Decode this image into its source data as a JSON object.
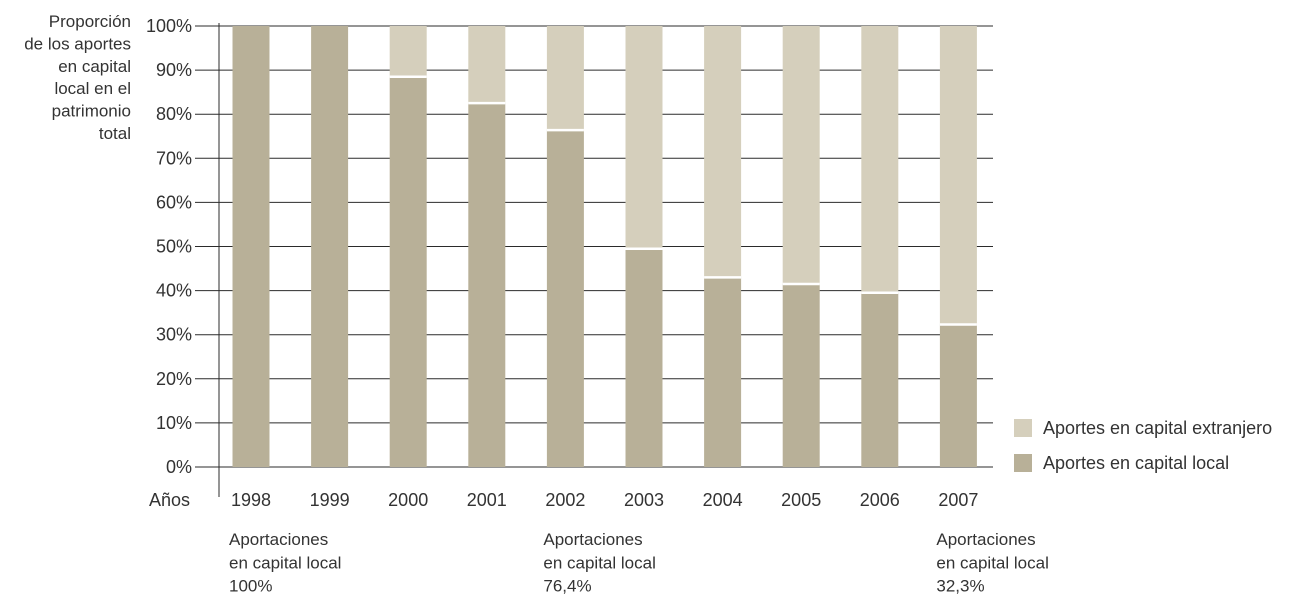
{
  "chart_data": {
    "type": "bar",
    "stacked": true,
    "percent": true,
    "ylabel": [
      "Proporción",
      "de los aportes",
      "en capital",
      "local en el",
      "patrimonio",
      "total"
    ],
    "xlabel": "Años",
    "ylim": [
      0,
      100
    ],
    "yticks": [
      "0%",
      "10%",
      "20%",
      "30%",
      "40%",
      "50%",
      "60%",
      "70%",
      "80%",
      "90%",
      "100%"
    ],
    "categories": [
      "1998",
      "1999",
      "2000",
      "2001",
      "2002",
      "2003",
      "2004",
      "2005",
      "2006",
      "2007"
    ],
    "series": [
      {
        "name": "Aportes en capital local",
        "color": "#b8b098",
        "values": [
          100,
          100,
          88.5,
          82.5,
          76.4,
          49.5,
          43,
          41.5,
          39.5,
          32.3
        ]
      },
      {
        "name": "Aportes en capital extranjero",
        "color": "#d5cfbc",
        "values": [
          0,
          0,
          11.5,
          17.5,
          23.6,
          50.5,
          57,
          58.5,
          60.5,
          67.7
        ]
      }
    ],
    "legend": {
      "position": "right",
      "items": [
        "Aportes en capital extranjero",
        "Aportes en capital local"
      ]
    },
    "grid": true,
    "annotations": [
      {
        "category": "1998",
        "lines": [
          "Aportaciones",
          "en capital local",
          "100%"
        ]
      },
      {
        "category": "2002",
        "lines": [
          "Aportaciones",
          "en capital local",
          "76,4%"
        ]
      },
      {
        "category": "2007",
        "lines": [
          "Aportaciones",
          "en capital local",
          "32,3%"
        ]
      }
    ]
  }
}
